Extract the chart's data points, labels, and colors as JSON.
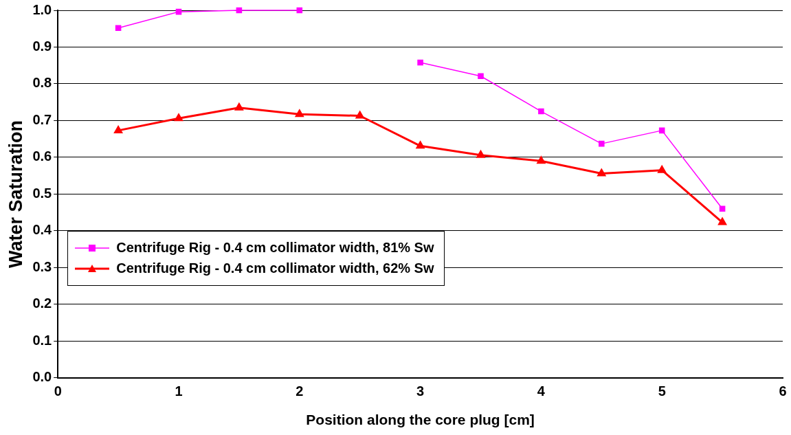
{
  "chart_data": {
    "type": "line",
    "xlabel": "Position along the core plug [cm]",
    "ylabel": "Water Saturation",
    "x": [
      0.5,
      1,
      1.5,
      2,
      2.5,
      3,
      3.5,
      4,
      4.5,
      5,
      5.5
    ],
    "series": [
      {
        "name": "Centrifuge Rig - 0.4 cm collimator width, 81% Sw",
        "color": "#ff00ff",
        "marker": "square",
        "values": [
          0.952,
          0.996,
          1.0,
          1.0,
          null,
          0.858,
          0.821,
          0.725,
          0.637,
          0.673,
          0.46
        ]
      },
      {
        "name": "Centrifuge Rig - 0.4 cm collimator width, 62% Sw",
        "color": "#ff0000",
        "marker": "triangle",
        "values": [
          0.673,
          0.706,
          0.735,
          0.717,
          0.713,
          0.631,
          0.606,
          0.59,
          0.556,
          0.565,
          0.423
        ]
      }
    ],
    "xlim": [
      0,
      6
    ],
    "xticks": [
      0,
      1,
      2,
      3,
      4,
      5,
      6
    ],
    "ylim": [
      0,
      1
    ],
    "yticks": [
      {
        "value": 0,
        "label": "0.0"
      },
      0.1,
      0.2,
      0.3,
      0.4,
      0.5,
      0.6,
      0.7,
      0.8,
      0.9,
      {
        "value": 1,
        "label": "1.0"
      }
    ],
    "grid": "y",
    "legend": "left",
    "line_style": "solid"
  }
}
